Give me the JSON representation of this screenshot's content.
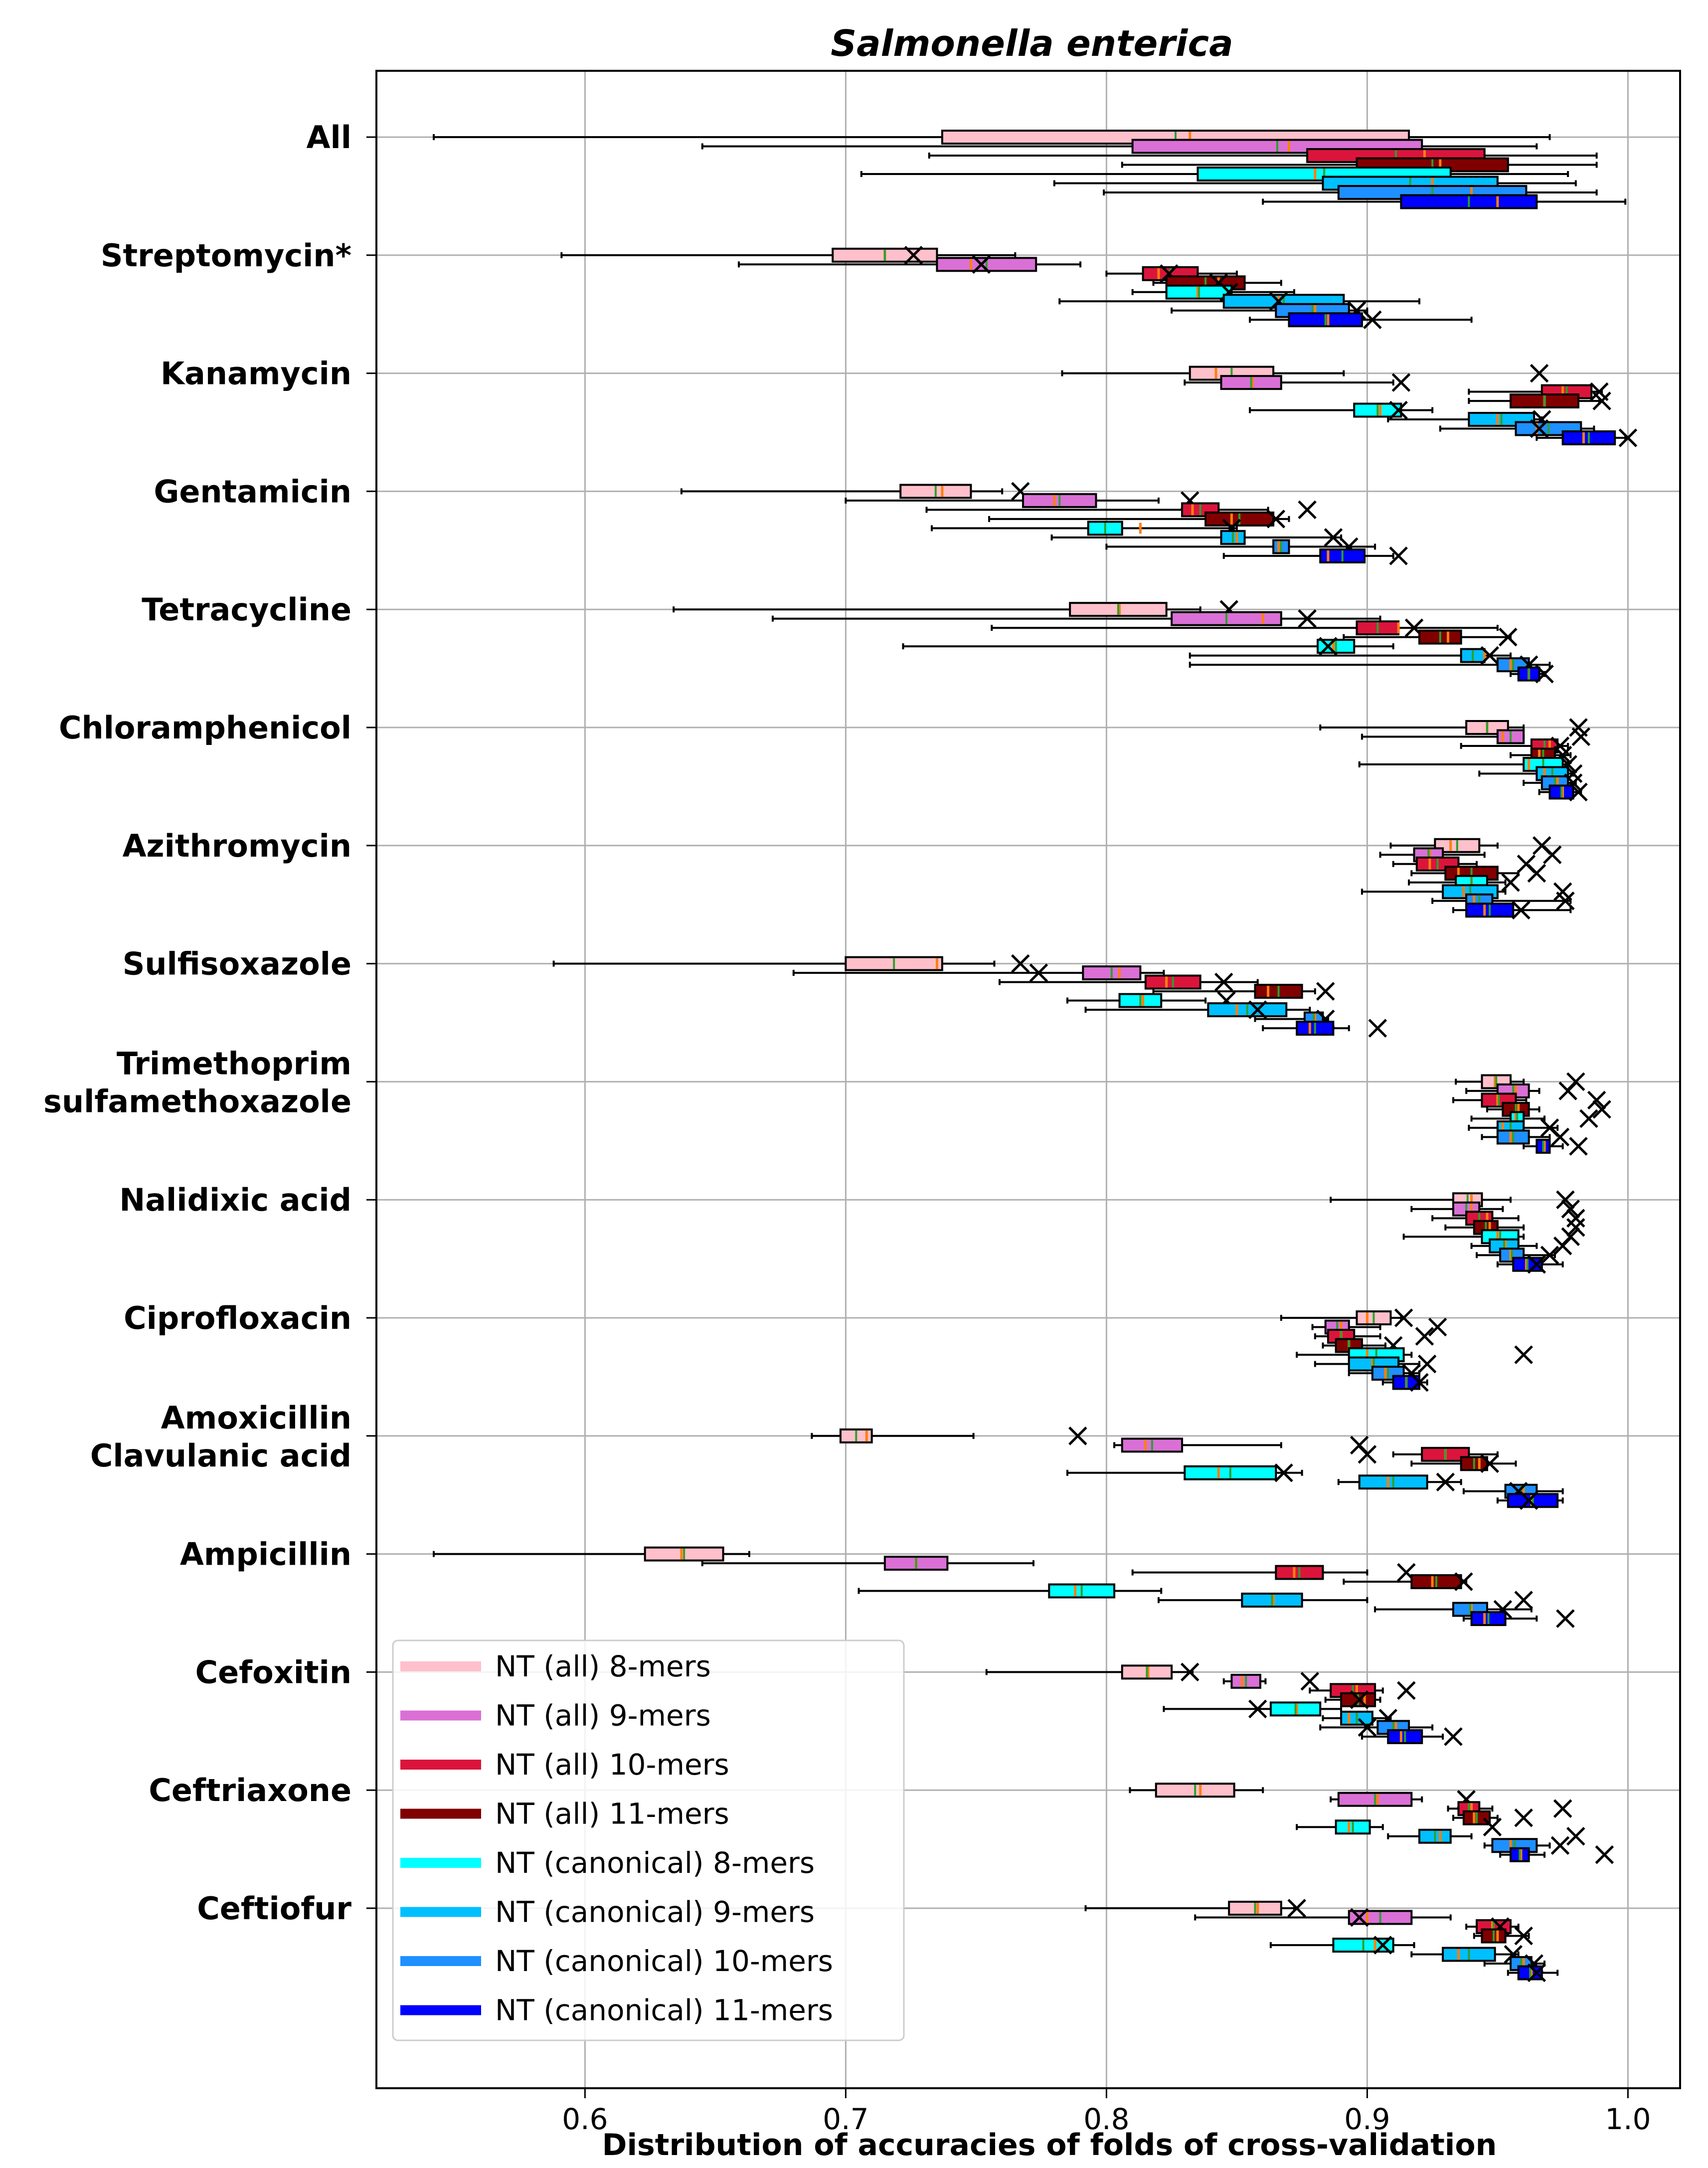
{
  "chart_data": {
    "type": "boxplot",
    "title": "Salmonella enterica",
    "xlabel": "Distribution of accuracies of folds of cross-validation",
    "ylabel": "",
    "xlim": [
      0.52,
      1.02
    ],
    "xticks": [
      "0.6",
      "0.7",
      "0.8",
      "0.9",
      "1.0"
    ],
    "grid": true,
    "legend_position": "bottom-left",
    "series": [
      {
        "name": "NT (all) 8-mers",
        "color": "#ffc0cb"
      },
      {
        "name": "NT (all) 9-mers",
        "color": "#da70d6"
      },
      {
        "name": "NT (all) 10-mers",
        "color": "#dc143c"
      },
      {
        "name": "NT (all) 11-mers",
        "color": "#800000"
      },
      {
        "name": "NT (canonical) 8-mers",
        "color": "#00ffff"
      },
      {
        "name": "NT (canonical) 9-mers",
        "color": "#00bfff"
      },
      {
        "name": "NT (canonical) 10-mers",
        "color": "#1e90ff"
      },
      {
        "name": "NT (canonical) 11-mers",
        "color": "#0000ff"
      }
    ],
    "groups": [
      {
        "label": "All",
        "boxes": [
          [
            0.542,
            0.737,
            0.832,
            0.916,
            0.97,
            null
          ],
          [
            0.645,
            0.81,
            0.87,
            0.921,
            0.965,
            null
          ],
          [
            0.732,
            0.877,
            0.922,
            0.945,
            0.988,
            null
          ],
          [
            0.806,
            0.896,
            0.928,
            0.954,
            0.988,
            null
          ],
          [
            0.706,
            0.835,
            0.88,
            0.932,
            0.977,
            null
          ],
          [
            0.78,
            0.883,
            0.925,
            0.95,
            0.98,
            null
          ],
          [
            0.799,
            0.889,
            0.94,
            0.961,
            0.988,
            null
          ],
          [
            0.86,
            0.913,
            0.95,
            0.965,
            0.999,
            null
          ]
        ]
      },
      {
        "label": "Streptomycin*",
        "boxes": [
          [
            0.591,
            0.695,
            0.715,
            0.735,
            0.765,
            0.726
          ],
          [
            0.659,
            0.735,
            0.748,
            0.773,
            0.79,
            0.752
          ],
          [
            0.8,
            0.814,
            0.82,
            0.835,
            0.85,
            0.824
          ],
          [
            0.818,
            0.823,
            0.843,
            0.853,
            0.867,
            0.843
          ],
          [
            0.81,
            0.823,
            0.835,
            0.848,
            0.872,
            0.847
          ],
          [
            0.782,
            0.845,
            0.866,
            0.891,
            0.92,
            0.866
          ],
          [
            0.825,
            0.865,
            0.88,
            0.893,
            0.9,
            0.896
          ],
          [
            0.855,
            0.87,
            0.885,
            0.898,
            0.94,
            0.902
          ]
        ]
      },
      {
        "label": "Kanamycin",
        "boxes": [
          [
            0.783,
            0.832,
            0.842,
            0.864,
            0.891,
            0.966
          ],
          [
            0.83,
            0.844,
            0.856,
            0.867,
            0.91,
            0.913
          ],
          [
            0.939,
            0.967,
            0.975,
            0.986,
            0.99,
            0.989
          ],
          [
            0.939,
            0.955,
            0.968,
            0.981,
            0.989,
            0.99
          ],
          [
            0.855,
            0.895,
            0.905,
            0.913,
            0.925,
            0.912
          ],
          [
            0.908,
            0.939,
            0.95,
            0.964,
            0.967,
            0.967
          ],
          [
            0.928,
            0.957,
            0.965,
            0.982,
            0.987,
            0.966
          ],
          [
            0.965,
            0.975,
            0.983,
            0.995,
            0.999,
            1.0
          ]
        ]
      },
      {
        "label": "Gentamicin",
        "boxes": [
          [
            0.637,
            0.721,
            0.737,
            0.748,
            0.76,
            0.767
          ],
          [
            0.7,
            0.768,
            0.78,
            0.796,
            0.82,
            0.832
          ],
          [
            0.731,
            0.829,
            0.833,
            0.843,
            0.862,
            0.877
          ],
          [
            0.755,
            0.838,
            0.848,
            0.864,
            0.87,
            0.865
          ],
          [
            0.733,
            0.793,
            0.813,
            0.806,
            0.85,
            0.848
          ],
          [
            0.779,
            0.844,
            0.85,
            0.853,
            0.89,
            0.887
          ],
          [
            0.8,
            0.864,
            0.866,
            0.87,
            0.903,
            0.893
          ],
          [
            0.845,
            0.882,
            0.885,
            0.899,
            0.91,
            0.912
          ]
        ]
      },
      {
        "label": "Tetracycline",
        "boxes": [
          [
            0.634,
            0.786,
            0.805,
            0.823,
            0.836,
            0.847
          ],
          [
            0.672,
            0.825,
            0.86,
            0.867,
            0.905,
            0.877
          ],
          [
            0.756,
            0.896,
            0.912,
            0.912,
            0.95,
            0.918
          ],
          [
            0.891,
            0.92,
            0.931,
            0.936,
            0.955,
            0.954
          ],
          [
            0.722,
            0.881,
            0.887,
            0.895,
            0.91,
            0.885
          ],
          [
            0.832,
            0.936,
            0.945,
            0.945,
            0.955,
            0.947
          ],
          [
            0.832,
            0.95,
            0.955,
            0.962,
            0.97,
            0.962
          ],
          [
            0.955,
            0.958,
            0.962,
            0.966,
            0.968,
            0.968
          ]
        ]
      },
      {
        "label": "Chloramphenicol",
        "boxes": [
          [
            0.882,
            0.938,
            0.946,
            0.954,
            0.96,
            0.981
          ],
          [
            0.898,
            0.95,
            0.952,
            0.96,
            0.96,
            0.982
          ],
          [
            0.936,
            0.963,
            0.97,
            0.973,
            0.977,
            0.974
          ],
          [
            0.955,
            0.963,
            0.966,
            0.972,
            0.978,
            0.975
          ],
          [
            0.897,
            0.96,
            0.962,
            0.975,
            0.977,
            0.977
          ],
          [
            0.943,
            0.965,
            0.968,
            0.977,
            0.979,
            0.979
          ],
          [
            0.96,
            0.967,
            0.973,
            0.977,
            0.98,
            0.979
          ],
          [
            0.966,
            0.97,
            0.975,
            0.979,
            0.982,
            0.981
          ]
        ]
      },
      {
        "label": "Azithromycin",
        "boxes": [
          [
            0.909,
            0.926,
            0.932,
            0.943,
            0.95,
            0.967
          ],
          [
            0.905,
            0.918,
            0.924,
            0.929,
            0.945,
            0.971
          ],
          [
            0.91,
            0.919,
            0.924,
            0.935,
            0.942,
            0.961
          ],
          [
            0.917,
            0.93,
            0.935,
            0.95,
            0.958,
            0.965
          ],
          [
            0.916,
            0.934,
            0.94,
            0.946,
            0.953,
            0.955
          ],
          [
            0.898,
            0.929,
            0.937,
            0.95,
            0.953,
            0.975
          ],
          [
            0.925,
            0.938,
            0.941,
            0.948,
            0.978,
            0.976
          ],
          [
            0.933,
            0.938,
            0.945,
            0.956,
            0.978,
            0.959
          ]
        ]
      },
      {
        "label": "Sulfisoxazole",
        "boxes": [
          [
            0.588,
            0.7,
            0.735,
            0.737,
            0.757,
            0.767
          ],
          [
            0.68,
            0.791,
            0.805,
            0.813,
            0.822,
            0.774
          ],
          [
            0.759,
            0.815,
            0.823,
            0.836,
            0.858,
            0.845
          ],
          [
            0.818,
            0.857,
            0.862,
            0.875,
            0.88,
            0.884
          ],
          [
            0.785,
            0.805,
            0.814,
            0.821,
            0.838,
            0.846
          ],
          [
            0.792,
            0.839,
            0.85,
            0.869,
            0.878,
            0.858
          ],
          [
            0.857,
            0.876,
            0.88,
            0.883,
            0.885,
            0.884
          ],
          [
            0.86,
            0.873,
            0.878,
            0.887,
            0.893,
            0.904
          ]
        ]
      },
      {
        "label": [
          "Trimethoprim",
          "sulfamethoxazole"
        ],
        "boxes": [
          [
            0.934,
            0.944,
            0.949,
            0.955,
            0.96,
            0.98
          ],
          [
            0.938,
            0.95,
            0.957,
            0.962,
            0.966,
            0.977
          ],
          [
            0.933,
            0.944,
            0.95,
            0.957,
            0.961,
            0.988
          ],
          [
            0.946,
            0.952,
            0.958,
            0.962,
            0.966,
            0.99
          ],
          [
            0.94,
            0.955,
            0.957,
            0.96,
            0.968,
            0.985
          ],
          [
            0.939,
            0.95,
            0.952,
            0.96,
            0.973,
            0.97
          ],
          [
            0.944,
            0.95,
            0.955,
            0.962,
            0.97,
            0.974
          ],
          [
            0.96,
            0.965,
            0.968,
            0.97,
            0.975,
            0.981
          ]
        ]
      },
      {
        "label": "Nalidixic acid",
        "boxes": [
          [
            0.886,
            0.933,
            0.94,
            0.944,
            0.955,
            0.976
          ],
          [
            0.917,
            0.933,
            0.94,
            0.943,
            0.952,
            0.978
          ],
          [
            0.925,
            0.938,
            0.946,
            0.948,
            0.958,
            0.98
          ],
          [
            0.93,
            0.941,
            0.947,
            0.95,
            0.96,
            0.98
          ],
          [
            0.914,
            0.944,
            0.95,
            0.958,
            0.96,
            0.978
          ],
          [
            0.94,
            0.947,
            0.953,
            0.958,
            0.965,
            0.975
          ],
          [
            0.942,
            0.951,
            0.955,
            0.96,
            0.972,
            0.97
          ],
          [
            0.95,
            0.956,
            0.961,
            0.967,
            0.975,
            0.965
          ]
        ]
      },
      {
        "label": "Ciprofloxacin",
        "boxes": [
          [
            0.867,
            0.896,
            0.9,
            0.909,
            0.913,
            0.914
          ],
          [
            0.879,
            0.884,
            0.89,
            0.893,
            0.905,
            0.927
          ],
          [
            0.88,
            0.885,
            0.89,
            0.895,
            0.905,
            0.922
          ],
          [
            0.883,
            0.888,
            0.893,
            0.898,
            0.907,
            0.91
          ],
          [
            0.873,
            0.893,
            0.9,
            0.914,
            0.917,
            0.96
          ],
          [
            0.88,
            0.893,
            0.902,
            0.912,
            0.92,
            0.923
          ],
          [
            0.893,
            0.902,
            0.907,
            0.914,
            0.92,
            0.917
          ],
          [
            0.906,
            0.91,
            0.915,
            0.92,
            0.923,
            0.92
          ]
        ]
      },
      {
        "label": [
          "Amoxicillin",
          "Clavulanic acid"
        ],
        "boxes": [
          [
            0.687,
            0.698,
            0.708,
            0.71,
            0.749,
            0.789
          ],
          [
            0.803,
            0.806,
            0.815,
            0.829,
            0.867,
            0.897
          ],
          [
            0.91,
            0.921,
            0.93,
            0.939,
            0.95,
            0.9
          ],
          [
            0.917,
            0.936,
            0.943,
            0.946,
            0.957,
            0.947
          ],
          [
            0.785,
            0.83,
            0.843,
            0.865,
            0.875,
            0.868
          ],
          [
            0.889,
            0.897,
            0.908,
            0.923,
            0.936,
            0.93
          ],
          [
            0.937,
            0.953,
            0.96,
            0.965,
            0.975,
            0.958
          ],
          [
            0.95,
            0.954,
            0.963,
            0.973,
            0.975,
            0.962
          ]
        ]
      },
      {
        "label": "Ampicillin",
        "boxes": [
          [
            0.542,
            0.623,
            0.637,
            0.653,
            0.663,
            null
          ],
          [
            0.645,
            0.715,
            0.727,
            0.739,
            0.772,
            null
          ],
          [
            0.81,
            0.865,
            0.872,
            0.883,
            0.9,
            0.915
          ],
          [
            0.891,
            0.917,
            0.925,
            0.936,
            0.938,
            0.937
          ],
          [
            0.705,
            0.778,
            0.788,
            0.803,
            0.821,
            null
          ],
          [
            0.82,
            0.852,
            0.864,
            0.875,
            0.9,
            0.96
          ],
          [
            0.903,
            0.933,
            0.94,
            0.946,
            0.963,
            0.952
          ],
          [
            0.937,
            0.94,
            0.945,
            0.953,
            0.965,
            0.976
          ]
        ]
      },
      {
        "label": "Cefoxitin",
        "boxes": [
          [
            0.754,
            0.806,
            0.816,
            0.825,
            0.833,
            0.832
          ],
          [
            0.845,
            0.848,
            0.852,
            0.859,
            0.861,
            0.878
          ],
          [
            0.878,
            0.886,
            0.896,
            0.903,
            0.906,
            0.915
          ],
          [
            0.884,
            0.89,
            0.899,
            0.903,
            0.905,
            0.897
          ],
          [
            0.822,
            0.863,
            0.873,
            0.882,
            0.89,
            0.858
          ],
          [
            0.883,
            0.89,
            0.893,
            0.902,
            0.909,
            0.908
          ],
          [
            0.882,
            0.904,
            0.911,
            0.916,
            0.925,
            0.9
          ],
          [
            0.898,
            0.908,
            0.913,
            0.921,
            0.929,
            0.933
          ]
        ]
      },
      {
        "label": "Ceftriaxone",
        "boxes": [
          [
            0.809,
            0.819,
            0.836,
            0.849,
            0.86,
            null
          ],
          [
            0.886,
            0.889,
            0.904,
            0.917,
            0.921,
            0.938
          ],
          [
            0.931,
            0.935,
            0.94,
            0.943,
            0.948,
            0.975
          ],
          [
            0.933,
            0.937,
            0.941,
            0.947,
            0.95,
            0.96
          ],
          [
            0.873,
            0.888,
            0.893,
            0.901,
            0.906,
            0.948
          ],
          [
            0.908,
            0.92,
            0.928,
            0.932,
            0.94,
            0.98
          ],
          [
            0.945,
            0.948,
            0.955,
            0.965,
            0.97,
            0.974
          ],
          [
            0.951,
            0.955,
            0.959,
            0.962,
            0.968,
            0.991
          ]
        ]
      },
      {
        "label": "Ceftiofur",
        "boxes": [
          [
            0.792,
            0.847,
            0.858,
            0.867,
            0.872,
            0.873
          ],
          [
            0.834,
            0.893,
            0.9,
            0.917,
            0.932,
            0.897
          ],
          [
            0.938,
            0.942,
            0.948,
            0.955,
            0.958,
            0.951
          ],
          [
            0.941,
            0.944,
            0.95,
            0.953,
            0.962,
            0.96
          ],
          [
            0.863,
            0.887,
            0.903,
            0.91,
            0.918,
            0.906
          ],
          [
            0.917,
            0.929,
            0.935,
            0.949,
            0.958,
            0.956
          ],
          [
            0.945,
            0.955,
            0.96,
            0.963,
            0.968,
            0.964
          ],
          [
            0.954,
            0.958,
            0.963,
            0.967,
            0.973,
            0.965
          ]
        ]
      }
    ]
  }
}
